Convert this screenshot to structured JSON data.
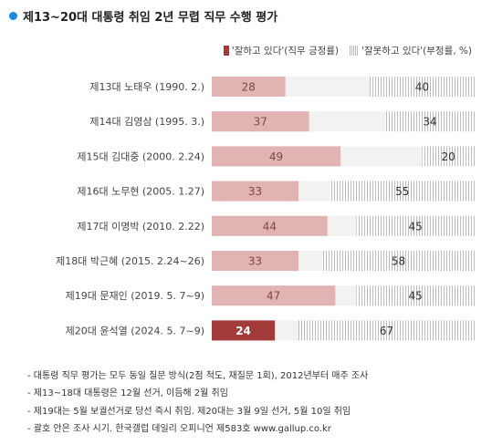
{
  "title": "제13~20대 대통령 취임 2년 무렵 직무 수행 평가",
  "legend": {
    "positive": "'잘하고 있다'(직무 긍정률)",
    "negative": "'잘못하고 있다'(부정률, %)"
  },
  "colors": {
    "title_dot": "#1a8be0",
    "positive": "#e2b3b3",
    "positive_highlight": "#a33a3a",
    "positive_text": "#7a4a4a",
    "positive_highlight_text": "#ffffff",
    "negative_stripe": "#bbbbbb",
    "negative_bg": "#f2f2f2"
  },
  "chart_data": {
    "type": "bar",
    "stacked": true,
    "orientation": "horizontal",
    "categories": [
      "제13대 노태우 (1990. 2.)",
      "제14대 김영삼 (1995. 3.)",
      "제15대 김대중 (2000. 2.24)",
      "제16대 노무현 (2005. 1.27)",
      "제17대 이명박 (2010. 2.22)",
      "제18대 박근혜 (2015. 2.24~26)",
      "제19대 문재인 (2019. 5. 7~9)",
      "제20대 윤석열 (2024. 5. 7~9)"
    ],
    "series": [
      {
        "name": "'잘하고 있다'(직무 긍정률)",
        "values": [
          28,
          37,
          49,
          33,
          44,
          33,
          47,
          24
        ]
      },
      {
        "name": "'잘못하고 있다'(부정률, %)",
        "values": [
          40,
          34,
          20,
          55,
          45,
          58,
          45,
          67
        ]
      }
    ],
    "highlight_index": 7,
    "xlim": [
      0,
      100
    ]
  },
  "notes": [
    "- 대통령 직무 평가는 모두 동일 질문 방식(2점 척도, 재질문 1회), 2012년부터 매주 조사",
    "- 제13~18대 대통령은 12월 선거, 이듬해 2월 취임",
    "- 제19대는 5월 보궐선거로 당선 즉시 취임. 제20대는 3월 9일 선거, 5월 10일 취임",
    "- 괄호 안은 조사 시기. 한국갤럽 데일리 오피니언 제583호 www.gallup.co.kr"
  ]
}
